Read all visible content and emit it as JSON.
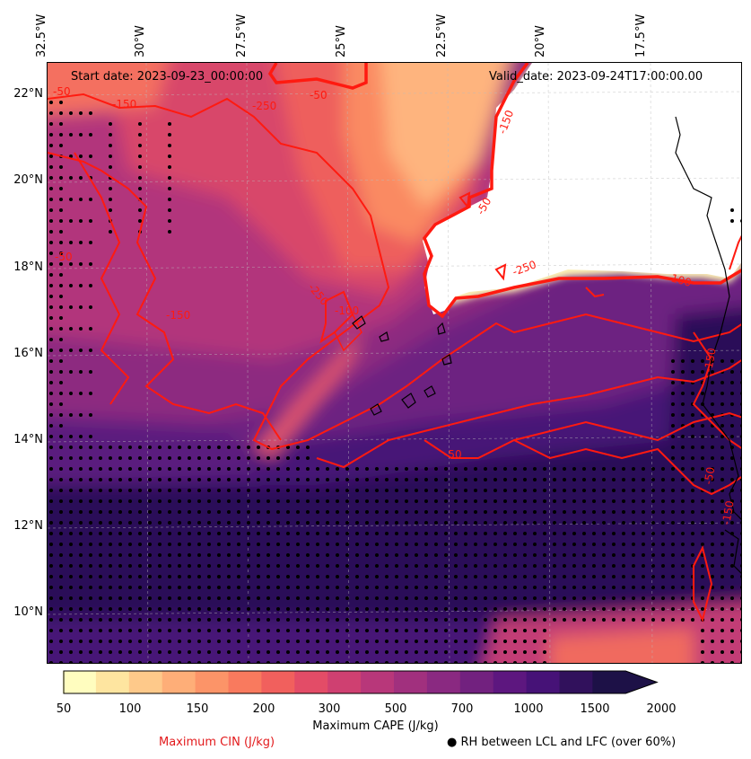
{
  "map": {
    "start_date": "Start date: 2023-09-23_00:00:00",
    "valid_date": "Valid_date: 2023-09-24T17:00:00.00",
    "longitude_labels": [
      "32.5°W",
      "30°W",
      "27.5°W",
      "25°W",
      "22.5°W",
      "20°W",
      "17.5°W"
    ],
    "latitude_labels": [
      "22°N",
      "20°N",
      "18°N",
      "16°N",
      "14°N",
      "12°N",
      "10°N"
    ],
    "contour_labels": [
      "-50",
      "-150",
      "-250",
      "-50",
      "-150",
      "-150",
      "-50",
      "-250",
      "-100",
      "-50",
      "-50",
      "-250",
      "-100",
      "-150",
      "-50",
      "-150"
    ]
  },
  "colorbar": {
    "title": "Maximum CAPE (J/kg)",
    "ticks": [
      "50",
      "100",
      "150",
      "200",
      "300",
      "500",
      "700",
      "1000",
      "1500",
      "2000"
    ],
    "colors": [
      "#fffdbf",
      "#fee5a0",
      "#fec98a",
      "#feae78",
      "#fc9468",
      "#f97a5e",
      "#f1605d",
      "#e34c67",
      "#cf4071",
      "#b8377a",
      "#a1307e",
      "#8a2981",
      "#72217f",
      "#5d177f",
      "#461277",
      "#31115c",
      "#1d1147"
    ]
  },
  "legend": {
    "cin_label": "Maximum CIN (J/kg)",
    "rh_label": "● RH between LCL and LFC (over 60%)",
    "cin_color": "#e31a1c"
  }
}
